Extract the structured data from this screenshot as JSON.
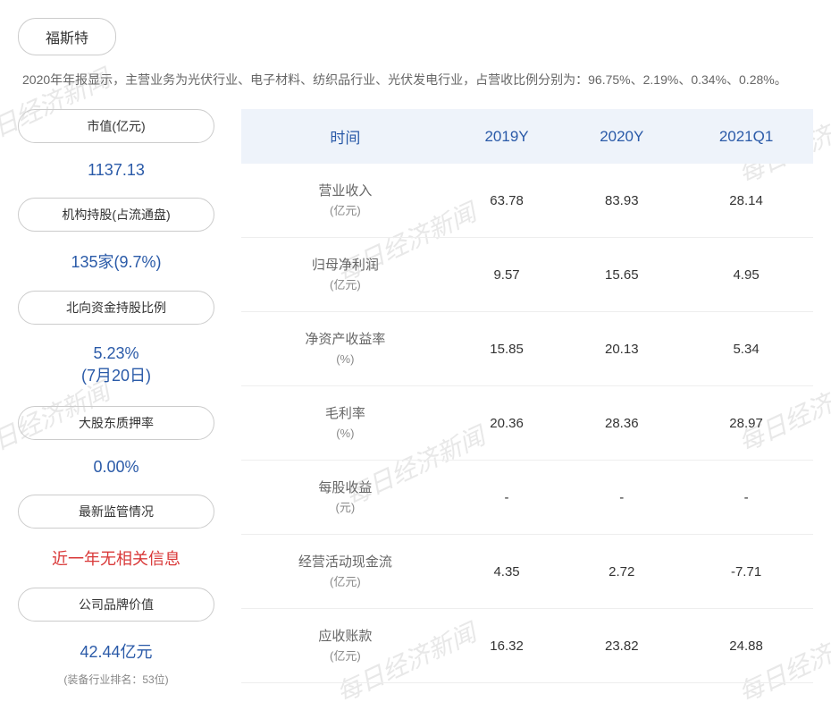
{
  "company_name": "福斯特",
  "description": "2020年年报显示，主营业务为光伏行业、电子材料、纺织品行业、光伏发电行业，占营收比例分别为：96.75%、2.19%、0.34%、0.28%。",
  "left_metrics": [
    {
      "label": "市值(亿元)",
      "value": "1137.13",
      "color": "blue"
    },
    {
      "label": "机构持股(占流通盘)",
      "value": "135家(9.7%)",
      "color": "blue"
    },
    {
      "label": "北向资金持股比例",
      "value": "5.23%\n(7月20日)",
      "color": "blue",
      "two_line": true
    },
    {
      "label": "大股东质押率",
      "value": "0.00%",
      "color": "blue"
    },
    {
      "label": "最新监管情况",
      "value": "近一年无相关信息",
      "color": "red"
    },
    {
      "label": "公司品牌价值",
      "value": "42.44亿元",
      "color": "blue",
      "subtext": "(装备行业排名：53位)"
    }
  ],
  "table": {
    "columns": [
      "时间",
      "2019Y",
      "2020Y",
      "2021Q1"
    ],
    "rows": [
      {
        "label": "营业收入",
        "unit": "(亿元)",
        "values": [
          "63.78",
          "83.93",
          "28.14"
        ]
      },
      {
        "label": "归母净利润",
        "unit": "(亿元)",
        "values": [
          "9.57",
          "15.65",
          "4.95"
        ]
      },
      {
        "label": "净资产收益率",
        "unit": "(%)",
        "values": [
          "15.85",
          "20.13",
          "5.34"
        ]
      },
      {
        "label": "毛利率",
        "unit": "(%)",
        "values": [
          "20.36",
          "28.36",
          "28.97"
        ]
      },
      {
        "label": "每股收益",
        "unit": "(元)",
        "values": [
          "-",
          "-",
          "-"
        ]
      },
      {
        "label": "经营活动现金流",
        "unit": "(亿元)",
        "values": [
          "4.35",
          "2.72",
          "-7.71"
        ]
      },
      {
        "label": "应收账款",
        "unit": "(亿元)",
        "values": [
          "16.32",
          "23.82",
          "24.88"
        ]
      }
    ]
  },
  "watermark_text": "每日经济新闻",
  "colors": {
    "blue": "#2a5aa8",
    "red": "#d93838",
    "header_bg": "#eef3fa",
    "border": "#cccccc",
    "text": "#333333",
    "subtext": "#888888",
    "watermark": "#e8e8e8"
  }
}
